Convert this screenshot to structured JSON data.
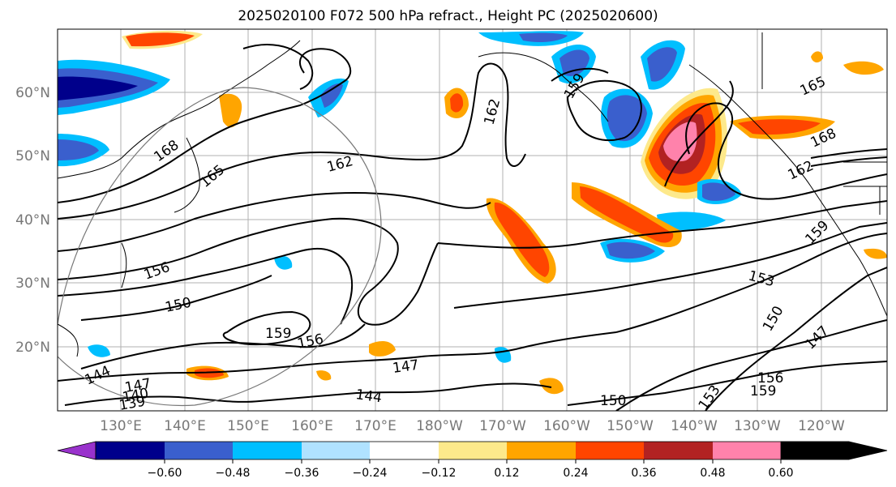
{
  "map": {
    "title": "2025020100 F072 500 hPa refract., Height PC (2025020600)",
    "lat_labels": [
      "60°N",
      "50°N",
      "40°N",
      "30°N",
      "20°N"
    ],
    "lon_labels": [
      "130°E",
      "140°E",
      "150°E",
      "160°E",
      "170°E",
      "180°W",
      "170°W",
      "160°W",
      "150°W",
      "140°W",
      "130°W",
      "120°W"
    ],
    "contour_labels": [
      "168",
      "165",
      "162",
      "162",
      "159",
      "156",
      "150",
      "159",
      "156",
      "147",
      "144",
      "144",
      "147",
      "140",
      "139",
      "150",
      "153",
      "156",
      "159",
      "147",
      "150",
      "153",
      "159",
      "162",
      "168",
      "165"
    ],
    "colorbar": {
      "ticks": [
        "−0.60",
        "−0.48",
        "−0.36",
        "−0.24",
        "−0.12",
        "0.12",
        "0.24",
        "0.36",
        "0.48",
        "0.60"
      ],
      "colors": [
        "#9932cc",
        "#00008b",
        "#3a5fcd",
        "#00bfff",
        "#b0e2ff",
        "#ffffff",
        "#fde98b",
        "#ffa500",
        "#ff4500",
        "#b22222",
        "#ff82ab"
      ]
    }
  }
}
